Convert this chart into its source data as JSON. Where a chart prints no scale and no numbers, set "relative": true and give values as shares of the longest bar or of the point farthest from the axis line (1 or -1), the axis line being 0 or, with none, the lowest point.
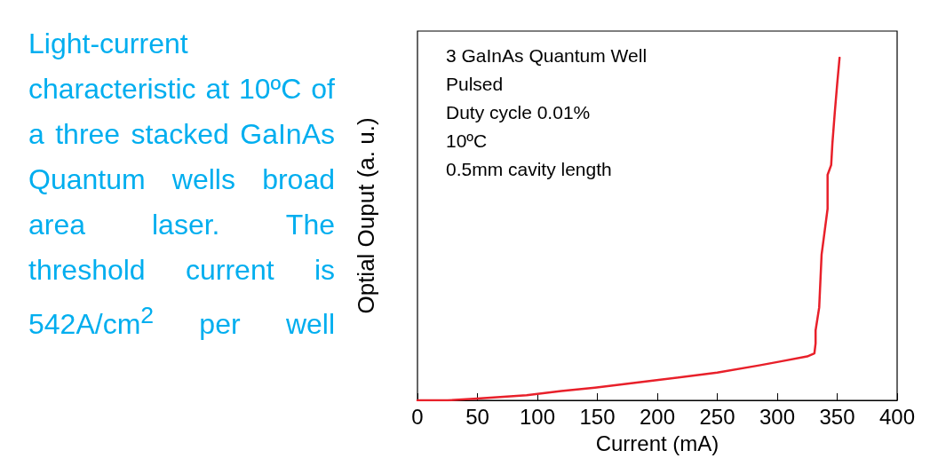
{
  "chart_data": {
    "type": "line",
    "title": "Light-current characteristic at 10ºC of a three stacked GaInAs Quantum wells broad area laser. The threshold current is 542A/cm$^{2}$ per well",
    "xlabel": "Current (mA)",
    "ylabel": "Optial Ouput (a. u.)",
    "relative": true,
    "xlim": [
      0,
      400
    ],
    "xticks": [
      0,
      50,
      100,
      150,
      200,
      250,
      300,
      350,
      400
    ],
    "grid": false,
    "marker": "none",
    "line_style": "solid",
    "annotations": [
      "3 GaInAs Quantum Well",
      "Pulsed",
      "Duty cycle 0.01%",
      "10ºC",
      "0.5mm cavity length"
    ],
    "series": [
      {
        "color": "#e8202a",
        "x": [
          0,
          25,
          50,
          91,
          120,
          148,
          198,
          250,
          285,
          302,
          325,
          331,
          332,
          332,
          335,
          337,
          342,
          342,
          345,
          346,
          348,
          350,
          352
        ],
        "values": [
          0,
          0,
          0.005,
          0.015,
          0.027,
          0.037,
          0.058,
          0.081,
          0.102,
          0.113,
          0.128,
          0.137,
          0.166,
          0.204,
          0.271,
          0.425,
          0.559,
          0.658,
          0.687,
          0.749,
          0.84,
          0.923,
          1
        ]
      }
    ]
  }
}
